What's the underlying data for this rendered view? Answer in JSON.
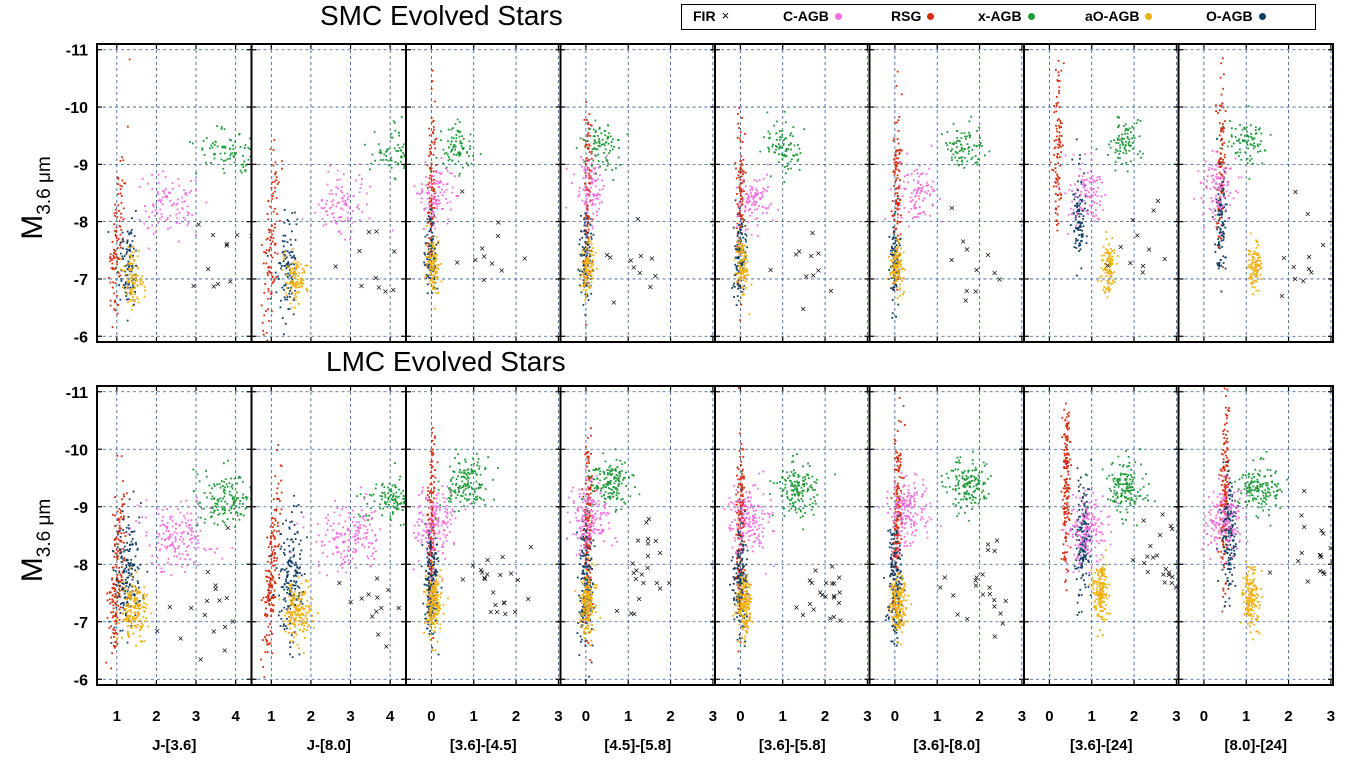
{
  "chart_data": {
    "type": "scatter",
    "legend": {
      "placement": "top-right",
      "entries": [
        {
          "name": "FIR",
          "marker": "x",
          "color": "#000000"
        },
        {
          "name": "C-AGB",
          "marker": "dot",
          "color": "#f26fde"
        },
        {
          "name": "RSG",
          "marker": "dot",
          "color": "#d42c0e"
        },
        {
          "name": "x-AGB",
          "marker": "dot",
          "color": "#1f9a38"
        },
        {
          "name": "aO-AGB",
          "marker": "dot",
          "color": "#f0b010"
        },
        {
          "name": "O-AGB",
          "marker": "dot",
          "color": "#123f66"
        }
      ]
    },
    "y_axis": {
      "label": "M",
      "label_sub": "3.6 μm",
      "range": [
        -5.9,
        -11.1
      ],
      "inverted": true,
      "ticks": [
        -6,
        -7,
        -8,
        -9,
        -10,
        -11
      ]
    },
    "grid": "dashed",
    "columns": [
      {
        "xlabel": "J-[3.6]",
        "xlim": [
          0.5,
          4.4
        ],
        "ticks": [
          1,
          2,
          3,
          4
        ]
      },
      {
        "xlabel": "J-[8.0]",
        "xlim": [
          0.5,
          4.4
        ],
        "ticks": [
          1,
          2,
          3,
          4
        ]
      },
      {
        "xlabel": "[3.6]-[4.5]",
        "xlim": [
          -0.6,
          3.05
        ],
        "ticks": [
          0,
          1,
          2,
          3
        ]
      },
      {
        "xlabel": "[4.5]-[5.8]",
        "xlim": [
          -0.6,
          3.05
        ],
        "ticks": [
          0,
          1,
          2,
          3
        ]
      },
      {
        "xlabel": "[3.6]-[5.8]",
        "xlim": [
          -0.6,
          3.05
        ],
        "ticks": [
          0,
          1,
          2,
          3
        ]
      },
      {
        "xlabel": "[3.6]-[8.0]",
        "xlim": [
          -0.6,
          3.05
        ],
        "ticks": [
          0,
          1,
          2,
          3
        ]
      },
      {
        "xlabel": "[3.6]-[24]",
        "xlim": [
          -0.6,
          3.05
        ],
        "ticks": [
          0,
          1,
          2,
          3
        ]
      },
      {
        "xlabel": "[8.0]-[24]",
        "xlim": [
          -0.6,
          3.05
        ],
        "ticks": [
          0,
          1,
          2,
          3
        ]
      }
    ],
    "rows": [
      {
        "title": "SMC Evolved Stars",
        "series": [
          {
            "name": "RSG",
            "centers": [
              [
                1.0,
                -7.6
              ],
              [
                1.0,
                -7.6
              ],
              [
                0.0,
                -8.5
              ],
              [
                0.05,
                -8.5
              ],
              [
                0.0,
                -8.5
              ],
              [
                0.05,
                -8.6
              ],
              [
                0.2,
                -9.2
              ],
              [
                0.4,
                -8.9
              ]
            ],
            "spread": [
              0.08,
              1.6
            ],
            "slope": -0.35,
            "density": 0.6
          },
          {
            "name": "O-AGB",
            "centers": [
              [
                1.3,
                -7.2
              ],
              [
                1.4,
                -7.2
              ],
              [
                0.0,
                -7.4
              ],
              [
                0.0,
                -7.4
              ],
              [
                0.0,
                -7.3
              ],
              [
                0.0,
                -7.3
              ],
              [
                0.7,
                -8.1
              ],
              [
                0.4,
                -8.0
              ]
            ],
            "spread": [
              0.12,
              0.8
            ],
            "slope": -0.2,
            "density": 0.6
          },
          {
            "name": "aO-AGB",
            "centers": [
              [
                1.4,
                -7.0
              ],
              [
                1.6,
                -7.0
              ],
              [
                0.05,
                -7.2
              ],
              [
                0.05,
                -7.2
              ],
              [
                0.05,
                -7.2
              ],
              [
                0.05,
                -7.2
              ],
              [
                1.4,
                -7.2
              ],
              [
                1.2,
                -7.2
              ]
            ],
            "spread": [
              0.12,
              0.45
            ],
            "slope": 0.0,
            "density": 0.6
          },
          {
            "name": "C-AGB",
            "centers": [
              [
                2.3,
                -8.3
              ],
              [
                2.8,
                -8.3
              ],
              [
                0.1,
                -8.5
              ],
              [
                0.1,
                -8.6
              ],
              [
                0.3,
                -8.4
              ],
              [
                0.5,
                -8.5
              ],
              [
                0.9,
                -8.5
              ],
              [
                0.3,
                -8.6
              ]
            ],
            "spread": [
              0.35,
              0.55
            ],
            "slope": -0.3,
            "density": 0.6
          },
          {
            "name": "x-AGB",
            "centers": [
              [
                3.8,
                -9.2
              ],
              [
                4.2,
                -9.2
              ],
              [
                0.6,
                -9.3
              ],
              [
                0.4,
                -9.3
              ],
              [
                1.0,
                -9.3
              ],
              [
                1.6,
                -9.3
              ],
              [
                1.8,
                -9.4
              ],
              [
                1.0,
                -9.4
              ]
            ],
            "spread": [
              0.35,
              0.4
            ],
            "slope": 0.0,
            "density": 0.5
          },
          {
            "name": "FIR",
            "centers": [
              [
                3.5,
                -7.3
              ],
              [
                3.8,
                -7.4
              ],
              [
                1.4,
                -7.2
              ],
              [
                1.1,
                -7.2
              ],
              [
                1.6,
                -7.2
              ],
              [
                1.7,
                -7.2
              ],
              [
                2.2,
                -7.4
              ],
              [
                2.3,
                -7.5
              ]
            ],
            "spread": [
              0.6,
              0.9
            ],
            "slope": 0.0,
            "density": 0.4
          }
        ]
      },
      {
        "title": "LMC Evolved Stars",
        "series": [
          {
            "name": "RSG",
            "centers": [
              [
                1.0,
                -7.8
              ],
              [
                1.0,
                -7.8
              ],
              [
                0.0,
                -8.6
              ],
              [
                0.05,
                -8.6
              ],
              [
                0.0,
                -8.6
              ],
              [
                0.05,
                -8.7
              ],
              [
                0.4,
                -9.4
              ],
              [
                0.5,
                -9.3
              ]
            ],
            "spread": [
              0.08,
              1.6
            ],
            "slope": -0.35,
            "density": 1.0
          },
          {
            "name": "O-AGB",
            "centers": [
              [
                1.3,
                -7.8
              ],
              [
                1.5,
                -7.8
              ],
              [
                0.0,
                -7.6
              ],
              [
                0.0,
                -7.6
              ],
              [
                0.0,
                -7.6
              ],
              [
                0.0,
                -7.6
              ],
              [
                0.8,
                -8.4
              ],
              [
                0.6,
                -8.5
              ]
            ],
            "spread": [
              0.14,
              1.0
            ],
            "slope": -0.2,
            "density": 1.0
          },
          {
            "name": "aO-AGB",
            "centers": [
              [
                1.45,
                -7.2
              ],
              [
                1.7,
                -7.2
              ],
              [
                0.05,
                -7.3
              ],
              [
                0.05,
                -7.3
              ],
              [
                0.1,
                -7.3
              ],
              [
                0.1,
                -7.3
              ],
              [
                1.2,
                -7.5
              ],
              [
                1.1,
                -7.4
              ]
            ],
            "spread": [
              0.15,
              0.5
            ],
            "slope": 0.0,
            "density": 1.0
          },
          {
            "name": "C-AGB",
            "centers": [
              [
                2.5,
                -8.5
              ],
              [
                3.0,
                -8.5
              ],
              [
                0.1,
                -8.7
              ],
              [
                0.1,
                -8.8
              ],
              [
                0.2,
                -8.8
              ],
              [
                0.3,
                -8.9
              ],
              [
                0.9,
                -8.6
              ],
              [
                0.5,
                -8.8
              ]
            ],
            "spread": [
              0.4,
              0.6
            ],
            "slope": -0.3,
            "density": 1.0
          },
          {
            "name": "x-AGB",
            "centers": [
              [
                3.8,
                -9.1
              ],
              [
                4.2,
                -9.1
              ],
              [
                0.8,
                -9.4
              ],
              [
                0.6,
                -9.4
              ],
              [
                1.3,
                -9.3
              ],
              [
                1.7,
                -9.4
              ],
              [
                1.8,
                -9.3
              ],
              [
                1.3,
                -9.3
              ]
            ],
            "spread": [
              0.4,
              0.45
            ],
            "slope": 0.0,
            "density": 0.9
          },
          {
            "name": "FIR",
            "centers": [
              [
                3.6,
                -7.2
              ],
              [
                3.9,
                -7.4
              ],
              [
                1.5,
                -7.6
              ],
              [
                1.3,
                -7.8
              ],
              [
                2.0,
                -7.5
              ],
              [
                2.2,
                -7.6
              ],
              [
                2.6,
                -8.1
              ],
              [
                2.7,
                -8.4
              ]
            ],
            "spread": [
              0.6,
              0.9
            ],
            "slope": 0.0,
            "density": 0.8
          }
        ]
      }
    ]
  }
}
